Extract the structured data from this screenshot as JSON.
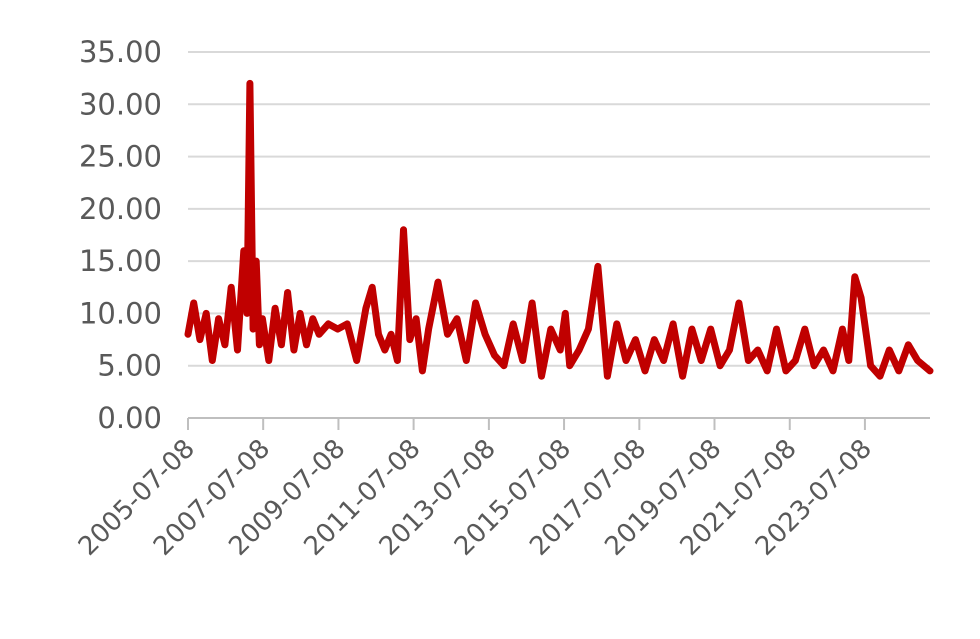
{
  "chart_data": {
    "type": "line",
    "title": "",
    "xlabel": "",
    "ylabel": "",
    "ylim": [
      0,
      35
    ],
    "yticks": [
      "0.00",
      "5.00",
      "10.00",
      "15.00",
      "20.00",
      "25.00",
      "30.00",
      "35.00"
    ],
    "xlim": [
      "2005-07-08",
      "2025-03-31"
    ],
    "xticks": [
      "2005-07-08",
      "2007-07-08",
      "2009-07-08",
      "2011-07-08",
      "2013-07-08",
      "2015-07-08",
      "2017-07-08",
      "2019-07-08",
      "2021-07-08",
      "2023-07-08"
    ],
    "grid": true,
    "legend": "none",
    "series_color": "#C00000",
    "series": [
      {
        "x": [
          "2005-07-08",
          "2005-09-01",
          "2005-11-01",
          "2006-01-01",
          "2006-03-01",
          "2006-05-01",
          "2006-07-01",
          "2006-09-01",
          "2006-11-01",
          "2007-01-01",
          "2007-02-01",
          "2007-03-01",
          "2007-04-01",
          "2007-05-01",
          "2007-06-01",
          "2007-07-01",
          "2007-09-01",
          "2007-11-01",
          "2008-01-01",
          "2008-03-01",
          "2008-05-01",
          "2008-07-01",
          "2008-09-01",
          "2008-11-01",
          "2009-01-01",
          "2009-04-01",
          "2009-07-01",
          "2009-10-01",
          "2010-01-01",
          "2010-04-01",
          "2010-06-01",
          "2010-08-01",
          "2010-10-01",
          "2010-12-01",
          "2011-02-01",
          "2011-04-01",
          "2011-06-01",
          "2011-08-01",
          "2011-10-01",
          "2011-12-01",
          "2012-03-01",
          "2012-06-01",
          "2012-09-01",
          "2012-12-01",
          "2013-03-01",
          "2013-06-01",
          "2013-09-01",
          "2013-12-01",
          "2014-03-01",
          "2014-06-01",
          "2014-09-01",
          "2014-12-01",
          "2015-03-01",
          "2015-06-01",
          "2015-07-20",
          "2015-09-01",
          "2015-12-01",
          "2016-03-01",
          "2016-06-01",
          "2016-09-01",
          "2016-12-01",
          "2017-03-01",
          "2017-06-01",
          "2017-09-01",
          "2017-12-01",
          "2018-03-01",
          "2018-06-01",
          "2018-09-01",
          "2018-12-01",
          "2019-03-01",
          "2019-06-01",
          "2019-09-01",
          "2019-12-01",
          "2020-03-01",
          "2020-06-01",
          "2020-09-01",
          "2020-12-01",
          "2021-03-01",
          "2021-06-01",
          "2021-09-01",
          "2021-12-01",
          "2022-03-01",
          "2022-06-01",
          "2022-09-01",
          "2022-12-01",
          "2023-02-01",
          "2023-04-01",
          "2023-06-01",
          "2023-09-01",
          "2023-12-01",
          "2024-03-01",
          "2024-06-01",
          "2024-09-01",
          "2024-12-01",
          "2025-03-31"
        ],
        "y": [
          8.0,
          11.0,
          7.5,
          10.0,
          5.5,
          9.5,
          7.0,
          12.5,
          6.5,
          16.0,
          10.0,
          32.0,
          8.5,
          15.0,
          7.0,
          9.5,
          5.5,
          10.5,
          7.0,
          12.0,
          6.5,
          10.0,
          7.0,
          9.5,
          8.0,
          9.0,
          8.5,
          9.0,
          5.5,
          10.5,
          12.5,
          8.0,
          6.5,
          8.0,
          5.5,
          18.0,
          7.5,
          9.5,
          4.5,
          8.5,
          13.0,
          8.0,
          9.5,
          5.5,
          11.0,
          8.0,
          6.0,
          5.0,
          9.0,
          5.5,
          11.0,
          4.0,
          8.5,
          6.5,
          10.0,
          5.0,
          6.5,
          8.5,
          14.5,
          4.0,
          9.0,
          5.5,
          7.5,
          4.5,
          7.5,
          5.5,
          9.0,
          4.0,
          8.5,
          5.5,
          8.5,
          5.0,
          6.5,
          11.0,
          5.5,
          6.5,
          4.5,
          8.5,
          4.5,
          5.5,
          8.5,
          5.0,
          6.5,
          4.5,
          8.5,
          5.5,
          13.5,
          11.5,
          5.0,
          4.0,
          6.5,
          4.5,
          7.0,
          5.5,
          4.5
        ]
      }
    ]
  }
}
